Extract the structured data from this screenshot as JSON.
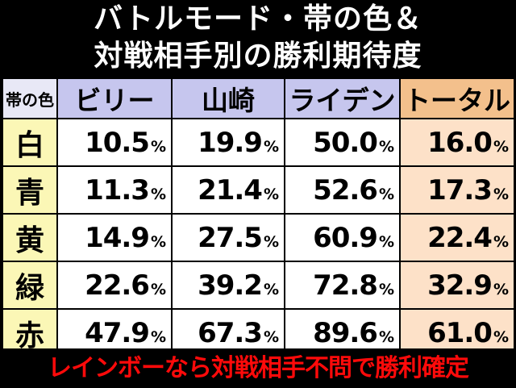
{
  "title": {
    "line1": "バトルモード・帯の色＆",
    "line2": "対戦相手別の勝利期待度"
  },
  "table": {
    "corner_label": "帯の色",
    "columns": [
      "ビリー",
      "山崎",
      "ライデン",
      "トータル"
    ],
    "percent_sign": "%",
    "rows": [
      {
        "color": "白",
        "values": [
          "10.5",
          "19.9",
          "50.0",
          "16.0"
        ]
      },
      {
        "color": "青",
        "values": [
          "11.3",
          "21.4",
          "52.6",
          "17.3"
        ]
      },
      {
        "color": "黄",
        "values": [
          "14.9",
          "27.5",
          "60.9",
          "22.4"
        ]
      },
      {
        "color": "緑",
        "values": [
          "22.6",
          "39.2",
          "72.8",
          "32.9"
        ]
      },
      {
        "color": "赤",
        "values": [
          "47.9",
          "67.3",
          "89.6",
          "61.0"
        ]
      }
    ]
  },
  "footnote": "レインボーなら対戦相手不問で勝利確定",
  "colors": {
    "background": "#000000",
    "header": "#c6c6ee",
    "header_total": "#f3c08c",
    "color_column": "#fbf7b6",
    "total_column": "#fde1c8",
    "footnote_text": "#ff0a0a"
  }
}
